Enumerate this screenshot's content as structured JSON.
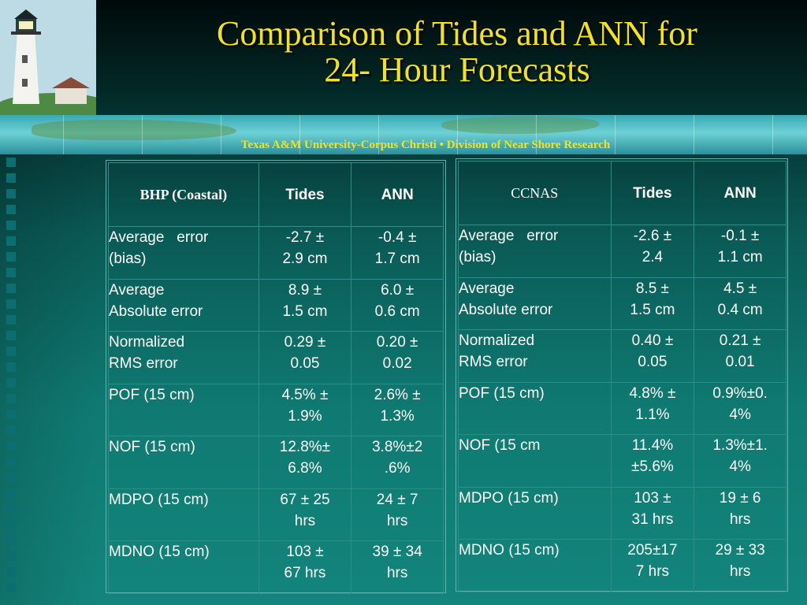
{
  "title_lines": [
    "Comparison of Tides and ANN for",
    "24- Hour Forecasts"
  ],
  "subtitle": "Texas A&M University-Corpus Christi • Division of Near Shore Research",
  "left_table": {
    "header": [
      "BHP (Coastal)",
      "Tides",
      "ANN"
    ],
    "rows": [
      {
        "label": [
          "Average   error",
          "(bias)"
        ],
        "tides": [
          "-2.7 ±",
          "2.9 cm"
        ],
        "ann": [
          "-0.4 ±",
          "1.7 cm"
        ]
      },
      {
        "label": [
          "Average",
          "Absolute error"
        ],
        "tides": [
          "8.9 ±",
          "1.5 cm"
        ],
        "ann": [
          "6.0 ±",
          "0.6 cm"
        ]
      },
      {
        "label": [
          "Normalized",
          "RMS error"
        ],
        "tides": [
          "0.29 ±",
          "0.05"
        ],
        "ann": [
          "0.20 ±",
          "0.02"
        ]
      },
      {
        "label": [
          "POF (15 cm)",
          ""
        ],
        "tides": [
          "4.5% ±",
          "1.9%"
        ],
        "ann": [
          "2.6% ±",
          "1.3%"
        ]
      },
      {
        "label": [
          "NOF (15 cm)",
          ""
        ],
        "tides": [
          "12.8%±",
          "6.8%"
        ],
        "ann": [
          "3.8%±2",
          ".6%"
        ]
      },
      {
        "label": [
          "MDPO (15 cm)",
          ""
        ],
        "tides": [
          "67 ± 25",
          "hrs"
        ],
        "ann": [
          "24 ± 7",
          "hrs"
        ]
      },
      {
        "label": [
          "MDNO (15 cm)",
          ""
        ],
        "tides": [
          "103 ±",
          "67 hrs"
        ],
        "ann": [
          "39 ± 34",
          "hrs"
        ]
      }
    ]
  },
  "right_table": {
    "header": [
      "CCNAS",
      "Tides",
      "ANN"
    ],
    "rows": [
      {
        "label": [
          "Average   error",
          "(bias)"
        ],
        "tides": [
          "-2.6 ±",
          "2.4"
        ],
        "ann": [
          "-0.1 ±",
          "1.1 cm"
        ]
      },
      {
        "label": [
          "Average",
          "Absolute error"
        ],
        "tides": [
          "8.5 ±",
          "1.5 cm"
        ],
        "ann": [
          "4.5 ±",
          "0.4 cm"
        ]
      },
      {
        "label": [
          "Normalized",
          "RMS error"
        ],
        "tides": [
          "0.40 ±",
          "0.05"
        ],
        "ann": [
          "0.21 ±",
          "0.01"
        ]
      },
      {
        "label": [
          "POF (15 cm)",
          ""
        ],
        "tides": [
          "4.8% ±",
          "1.1%"
        ],
        "ann": [
          "0.9%±0.",
          "4%"
        ]
      },
      {
        "label": [
          "NOF (15 cm",
          ""
        ],
        "tides": [
          "11.4%",
          "±5.6%"
        ],
        "ann": [
          "1.3%±1.",
          "4%"
        ]
      },
      {
        "label": [
          "MDPO (15 cm)",
          ""
        ],
        "tides": [
          "103 ±",
          "31 hrs"
        ],
        "ann": [
          "19 ± 6",
          "hrs"
        ]
      },
      {
        "label": [
          "MDNO (15 cm)",
          ""
        ],
        "tides": [
          "205±17",
          "7 hrs"
        ],
        "ann": [
          "29 ± 33",
          "hrs"
        ]
      }
    ]
  },
  "colors": {
    "title": "#f4e21a",
    "table_border": "#2d8e88",
    "text": "#ffffff"
  }
}
